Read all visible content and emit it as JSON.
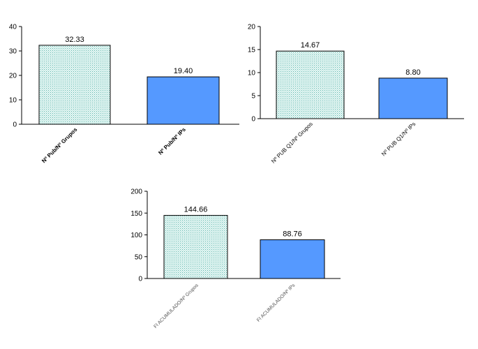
{
  "colors": {
    "bar1_fill": "#e6f7f4",
    "bar1_dots": "#62b6ae",
    "bar2_fill": "#5599ff",
    "axis": "#000000"
  },
  "chart_data": [
    {
      "type": "bar",
      "categories": [
        "Nº Pub/Nº Grupos",
        "Nº Pub/Nº IPs"
      ],
      "values": [
        32.33,
        19.4
      ],
      "value_labels": [
        "32.33",
        "19.40"
      ],
      "ylim": [
        0,
        40
      ],
      "yticks": [
        0,
        10,
        20,
        30,
        40
      ],
      "grid": false
    },
    {
      "type": "bar",
      "categories": [
        "Nº PUB Q1/Nº Grupos",
        "Nº PUB Q1/Nº IPs"
      ],
      "values": [
        14.67,
        8.8
      ],
      "value_labels": [
        "14.67",
        "8.80"
      ],
      "ylim": [
        0,
        20
      ],
      "yticks": [
        0,
        5,
        10,
        15,
        20
      ],
      "grid": false
    },
    {
      "type": "bar",
      "categories": [
        "FI ACUMULADO/Nº Grupos",
        "FI ACUMULADO/Nº IPs"
      ],
      "values": [
        144.66,
        88.76
      ],
      "value_labels": [
        "144.66",
        "88.76"
      ],
      "ylim": [
        0,
        200
      ],
      "yticks": [
        0,
        50,
        100,
        150,
        200
      ],
      "grid": false
    }
  ]
}
